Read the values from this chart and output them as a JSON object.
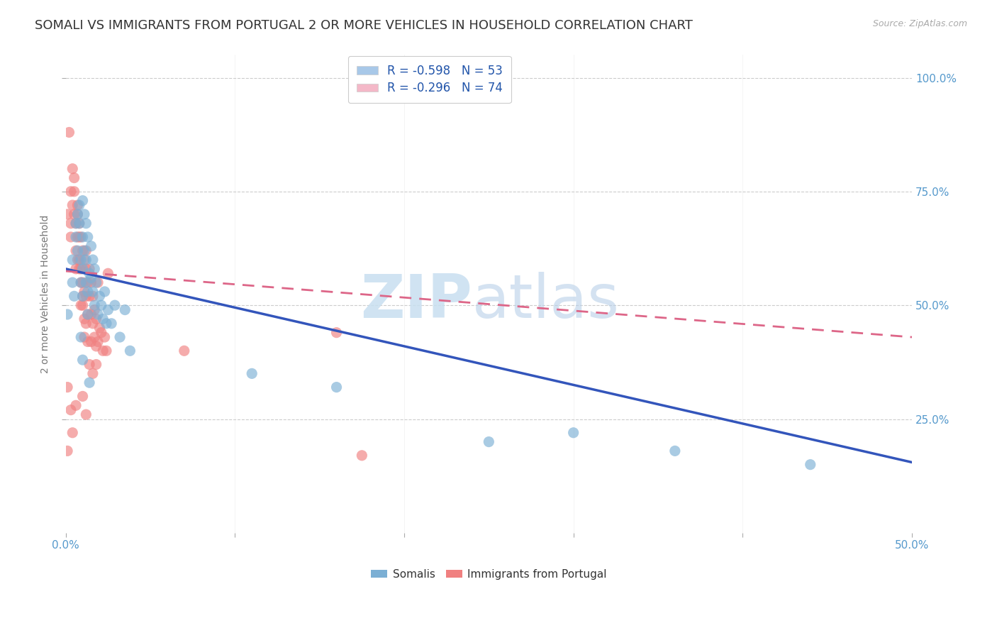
{
  "title": "SOMALI VS IMMIGRANTS FROM PORTUGAL 2 OR MORE VEHICLES IN HOUSEHOLD CORRELATION CHART",
  "source": "Source: ZipAtlas.com",
  "ylabel": "2 or more Vehicles in Household",
  "somali_color": "#7bafd4",
  "portugal_color": "#f08080",
  "somali_legend_color": "#a8c8e8",
  "portugal_legend_color": "#f4b8c8",
  "watermark_zip": "ZIP",
  "watermark_atlas": "atlas",
  "somali_scatter": [
    [
      0.001,
      0.48
    ],
    [
      0.004,
      0.6
    ],
    [
      0.004,
      0.55
    ],
    [
      0.005,
      0.52
    ],
    [
      0.006,
      0.68
    ],
    [
      0.006,
      0.65
    ],
    [
      0.007,
      0.7
    ],
    [
      0.007,
      0.62
    ],
    [
      0.008,
      0.72
    ],
    [
      0.008,
      0.68
    ],
    [
      0.009,
      0.6
    ],
    [
      0.009,
      0.55
    ],
    [
      0.01,
      0.73
    ],
    [
      0.01,
      0.65
    ],
    [
      0.01,
      0.58
    ],
    [
      0.01,
      0.52
    ],
    [
      0.011,
      0.7
    ],
    [
      0.011,
      0.62
    ],
    [
      0.012,
      0.55
    ],
    [
      0.012,
      0.68
    ],
    [
      0.012,
      0.6
    ],
    [
      0.013,
      0.53
    ],
    [
      0.013,
      0.48
    ],
    [
      0.013,
      0.65
    ],
    [
      0.014,
      0.57
    ],
    [
      0.015,
      0.63
    ],
    [
      0.015,
      0.56
    ],
    [
      0.016,
      0.6
    ],
    [
      0.016,
      0.53
    ],
    [
      0.017,
      0.58
    ],
    [
      0.017,
      0.5
    ],
    [
      0.018,
      0.55
    ],
    [
      0.019,
      0.48
    ],
    [
      0.02,
      0.52
    ],
    [
      0.021,
      0.5
    ],
    [
      0.022,
      0.47
    ],
    [
      0.023,
      0.53
    ],
    [
      0.024,
      0.46
    ],
    [
      0.025,
      0.49
    ],
    [
      0.027,
      0.46
    ],
    [
      0.029,
      0.5
    ],
    [
      0.032,
      0.43
    ],
    [
      0.035,
      0.49
    ],
    [
      0.038,
      0.4
    ],
    [
      0.009,
      0.43
    ],
    [
      0.01,
      0.38
    ],
    [
      0.014,
      0.33
    ],
    [
      0.11,
      0.35
    ],
    [
      0.16,
      0.32
    ],
    [
      0.25,
      0.2
    ],
    [
      0.3,
      0.22
    ],
    [
      0.36,
      0.18
    ],
    [
      0.44,
      0.15
    ]
  ],
  "portugal_scatter": [
    [
      0.001,
      0.7
    ],
    [
      0.002,
      0.88
    ],
    [
      0.003,
      0.75
    ],
    [
      0.003,
      0.68
    ],
    [
      0.004,
      0.8
    ],
    [
      0.004,
      0.72
    ],
    [
      0.005,
      0.78
    ],
    [
      0.005,
      0.7
    ],
    [
      0.005,
      0.75
    ],
    [
      0.006,
      0.68
    ],
    [
      0.006,
      0.62
    ],
    [
      0.006,
      0.58
    ],
    [
      0.007,
      0.72
    ],
    [
      0.007,
      0.65
    ],
    [
      0.007,
      0.6
    ],
    [
      0.007,
      0.7
    ],
    [
      0.008,
      0.65
    ],
    [
      0.008,
      0.58
    ],
    [
      0.008,
      0.68
    ],
    [
      0.008,
      0.6
    ],
    [
      0.009,
      0.55
    ],
    [
      0.009,
      0.5
    ],
    [
      0.009,
      0.65
    ],
    [
      0.009,
      0.58
    ],
    [
      0.01,
      0.52
    ],
    [
      0.01,
      0.62
    ],
    [
      0.01,
      0.55
    ],
    [
      0.01,
      0.5
    ],
    [
      0.011,
      0.6
    ],
    [
      0.011,
      0.53
    ],
    [
      0.011,
      0.47
    ],
    [
      0.011,
      0.43
    ],
    [
      0.012,
      0.58
    ],
    [
      0.012,
      0.52
    ],
    [
      0.012,
      0.46
    ],
    [
      0.012,
      0.62
    ],
    [
      0.013,
      0.55
    ],
    [
      0.013,
      0.48
    ],
    [
      0.013,
      0.42
    ],
    [
      0.014,
      0.58
    ],
    [
      0.014,
      0.52
    ],
    [
      0.015,
      0.55
    ],
    [
      0.015,
      0.48
    ],
    [
      0.015,
      0.42
    ],
    [
      0.016,
      0.52
    ],
    [
      0.016,
      0.46
    ],
    [
      0.017,
      0.49
    ],
    [
      0.017,
      0.43
    ],
    [
      0.018,
      0.47
    ],
    [
      0.018,
      0.41
    ],
    [
      0.019,
      0.55
    ],
    [
      0.019,
      0.42
    ],
    [
      0.02,
      0.45
    ],
    [
      0.021,
      0.44
    ],
    [
      0.022,
      0.4
    ],
    [
      0.023,
      0.43
    ],
    [
      0.024,
      0.4
    ],
    [
      0.025,
      0.57
    ],
    [
      0.001,
      0.32
    ],
    [
      0.003,
      0.27
    ],
    [
      0.004,
      0.22
    ],
    [
      0.006,
      0.28
    ],
    [
      0.01,
      0.3
    ],
    [
      0.012,
      0.26
    ],
    [
      0.014,
      0.37
    ],
    [
      0.016,
      0.35
    ],
    [
      0.018,
      0.37
    ],
    [
      0.07,
      0.4
    ],
    [
      0.16,
      0.44
    ],
    [
      0.175,
      0.17
    ],
    [
      0.003,
      0.65
    ],
    [
      0.001,
      0.18
    ]
  ],
  "somali_trendline": {
    "x": [
      0.0,
      0.5
    ],
    "y": [
      0.58,
      0.155
    ]
  },
  "portugal_trendline": {
    "x": [
      0.0,
      0.5
    ],
    "y": [
      0.575,
      0.43
    ]
  },
  "xlim": [
    0.0,
    0.5
  ],
  "ylim": [
    0.0,
    1.05
  ],
  "xticks": [
    0.0,
    0.1,
    0.2,
    0.3,
    0.4,
    0.5
  ],
  "xtick_labels_show": [
    "0.0%",
    "",
    "",
    "",
    "",
    "50.0%"
  ],
  "yticks": [
    0.25,
    0.5,
    0.75,
    1.0
  ],
  "ytick_labels": [
    "25.0%",
    "50.0%",
    "75.0%",
    "100.0%"
  ],
  "background_color": "#ffffff",
  "grid_color": "#cccccc",
  "title_fontsize": 13,
  "tick_label_color": "#5599cc",
  "title_color": "#333333",
  "source_color": "#aaaaaa"
}
